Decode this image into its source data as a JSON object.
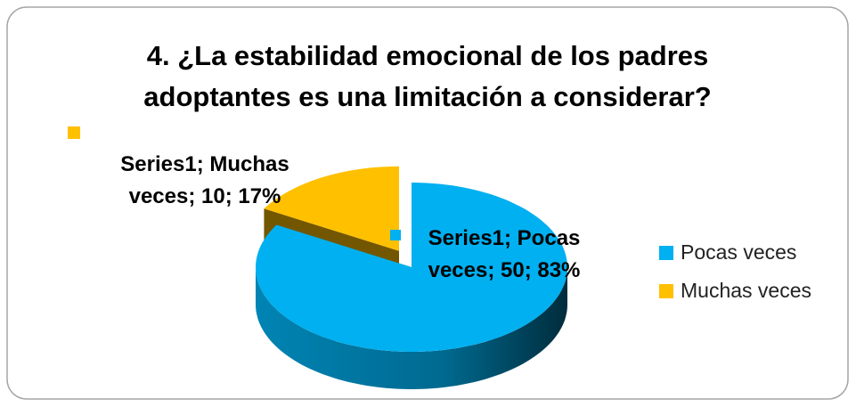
{
  "chart_data": {
    "type": "pie",
    "title": "4. ¿La estabilidad emocional de los padres adoptantes es una limitación a considerar?",
    "categories": [
      "Pocas veces",
      "Muchas veces"
    ],
    "series": [
      {
        "name": "Series1",
        "values": [
          50,
          10
        ],
        "value_labels": [
          "Series1; Pocas veces; 50; 83%",
          "Series1; Muchas veces; 10; 17%"
        ]
      }
    ],
    "colors": [
      "#00b0f0",
      "#ffc000"
    ],
    "legend": "right"
  }
}
